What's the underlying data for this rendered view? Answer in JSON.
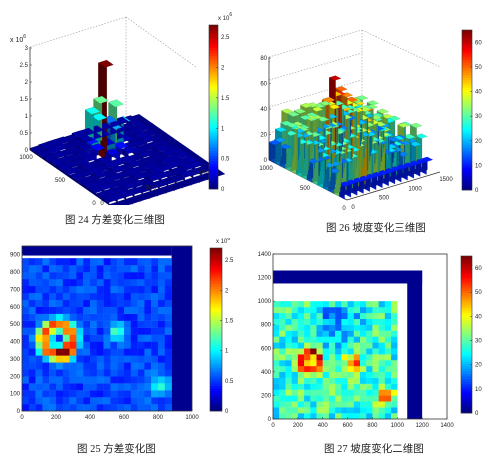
{
  "captions": {
    "fig24": "图 24   方差变化三维图",
    "fig26": "图 26  坡度变化三维图",
    "fig25": "图 25   方差变化图",
    "fig27": "图 27  坡度变化二维图"
  },
  "colormap": "jet",
  "chart_data": [
    {
      "id": "fig24",
      "type": "surface3d",
      "zlabel": "x 10",
      "zlabel_exponent": "6",
      "z_ticks": [
        "0",
        "0.5",
        "1",
        "1.5",
        "2",
        "2.5",
        "3"
      ],
      "zlim": [
        0,
        3
      ],
      "x_ticks": [
        "0",
        "500",
        "1000"
      ],
      "y_ticks": [
        "0",
        "500",
        "1000"
      ],
      "colorbar": {
        "label": "x 10",
        "exponent": "6",
        "ticks": [
          "0",
          "0.5",
          "1",
          "1.5",
          "2",
          "2.5"
        ],
        "range": [
          0,
          2.7
        ]
      }
    },
    {
      "id": "fig26",
      "type": "surface3d",
      "z_ticks": [
        "0",
        "20",
        "40",
        "60",
        "80"
      ],
      "zlim": [
        0,
        80
      ],
      "x_ticks": [
        "0",
        "500",
        "1000"
      ],
      "y_ticks": [
        "0",
        "500",
        "1000",
        "1500"
      ],
      "colorbar": {
        "ticks": [
          "0",
          "10",
          "20",
          "30",
          "40",
          "50",
          "60"
        ],
        "range": [
          0,
          65
        ]
      }
    },
    {
      "id": "fig25",
      "type": "heatmap",
      "x_ticks": [
        "0",
        "200",
        "400",
        "600",
        "800",
        "1000"
      ],
      "y_ticks": [
        "0",
        "100",
        "200",
        "300",
        "400",
        "500",
        "600",
        "700",
        "800",
        "900"
      ],
      "xlim": [
        0,
        1000
      ],
      "ylim": [
        0,
        950
      ],
      "colorbar": {
        "label": "x 10",
        "exponent": "6",
        "ticks": [
          "0",
          "0.5",
          "1",
          "1.5",
          "2",
          "2.5"
        ],
        "range": [
          0,
          2.7
        ]
      }
    },
    {
      "id": "fig27",
      "type": "heatmap",
      "x_ticks": [
        "0",
        "200",
        "400",
        "600",
        "800",
        "1000",
        "1200",
        "1400"
      ],
      "y_ticks": [
        "0",
        "200",
        "400",
        "600",
        "800",
        "1000",
        "1200",
        "1400"
      ],
      "xlim": [
        0,
        1400
      ],
      "ylim": [
        0,
        1400
      ],
      "colorbar": {
        "ticks": [
          "0",
          "10",
          "20",
          "30",
          "40",
          "50",
          "60"
        ],
        "range": [
          0,
          65
        ]
      }
    }
  ]
}
